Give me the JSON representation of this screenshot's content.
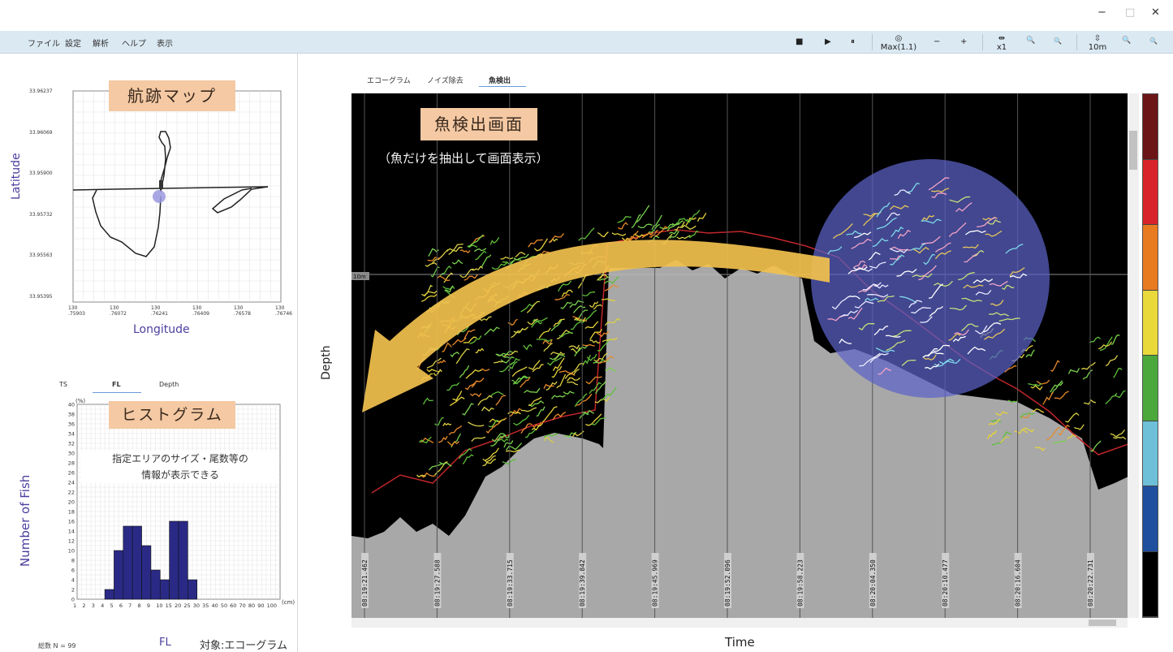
{
  "window": {
    "minimize": "−",
    "maximize": "□",
    "close": "✕"
  },
  "menu": [
    "ファイル",
    "設定",
    "解析",
    "ヘルプ",
    "表示"
  ],
  "toolbar": {
    "stop": "■",
    "play": "▶",
    "pause": "⏸",
    "gain_icon": "◎",
    "gain_label": "Max(1.1)",
    "minus1": "−",
    "plus1": "+",
    "hzoom_icon": "⇹",
    "hzoom_label": "x1",
    "zoom_in1": "🔍",
    "zoom_out1": "🔍",
    "vzoom_icon": "⇳",
    "vzoom_label": "10m",
    "zoom_in2": "🔍",
    "zoom_out2": "🔍"
  },
  "tabs": [
    "エコーグラム",
    "ノイズ除去",
    "魚検出"
  ],
  "track_map": {
    "callout": "航跡マップ",
    "ylabel": "Latitude",
    "xlabel": "Longitude",
    "yticks": [
      "33.96237",
      "33.96069",
      "33.95900",
      "33.95732",
      "33.95563",
      "33.95395"
    ],
    "xticks": [
      [
        "130",
        ".75903"
      ],
      [
        "130",
        ".76072"
      ],
      [
        "130",
        ".76241"
      ],
      [
        "130",
        ".76409"
      ],
      [
        "130",
        ".76578"
      ],
      [
        "130",
        ".76746"
      ]
    ]
  },
  "echogram": {
    "callout_title": "魚検出画面",
    "callout_sub": "（魚だけを抽出して画面表示）",
    "ylabel": "Depth",
    "xlabel": "Time",
    "depth_marker": "10m",
    "times": [
      "08:19:21.462",
      "08:19:27.588",
      "08:19:33.715",
      "08:19:39.842",
      "08:19:45.969",
      "08:19:52.096",
      "08:19:58.223",
      "08:20:04.350",
      "08:20:10.477",
      "08:20:16.604",
      "08:20:22.731"
    ],
    "colorbar": [
      "#6b1517",
      "#d8232a",
      "#e87a20",
      "#e9d93a",
      "#4ba83a",
      "#6dc0d8",
      "#1f4f9e",
      "#000000"
    ],
    "accent_circle": "#5b63c8",
    "arrow_color": "#f2c14e"
  },
  "histogram": {
    "tabs": [
      "TS",
      "FL",
      "Depth"
    ],
    "callout": "ヒストグラム",
    "note_line1": "指定エリアのサイズ・尾数等の",
    "note_line2": "情報が表示できる",
    "ylabel": "Number of Fish",
    "yunit": "(%)",
    "xunit": "(cm)",
    "footer_count": "総数 N = 99",
    "footer_type": "FL",
    "footer_target": "対象:エコーグラム",
    "yticks": [
      "40",
      "38",
      "36",
      "34",
      "32",
      "30",
      "28",
      "26",
      "24",
      "22",
      "20",
      "18",
      "16",
      "14",
      "12",
      "10",
      "8",
      "6",
      "4",
      "2",
      "0"
    ],
    "xticks": [
      "1",
      "2",
      "3",
      "4",
      "5",
      "6",
      "7",
      "8",
      "9",
      "10",
      "15",
      "20",
      "25",
      "30",
      "35",
      "40",
      "50",
      "60",
      "70",
      "80",
      "90",
      "100"
    ]
  },
  "chart_data": {
    "type": "bar",
    "categories": [
      "1",
      "2",
      "3",
      "4",
      "5",
      "6",
      "7",
      "8",
      "9",
      "10",
      "15",
      "20",
      "25",
      "30",
      "35",
      "40",
      "50",
      "60",
      "70",
      "80",
      "90",
      "100"
    ],
    "series": [
      {
        "values": [
          0,
          0,
          0,
          2,
          10,
          15,
          15,
          11,
          6,
          4,
          16,
          16,
          4,
          0,
          0,
          0,
          0,
          0,
          0,
          0,
          0,
          0
        ]
      }
    ],
    "ylabel": "Number of Fish",
    "ylim": [
      0,
      40
    ],
    "grid": true
  }
}
